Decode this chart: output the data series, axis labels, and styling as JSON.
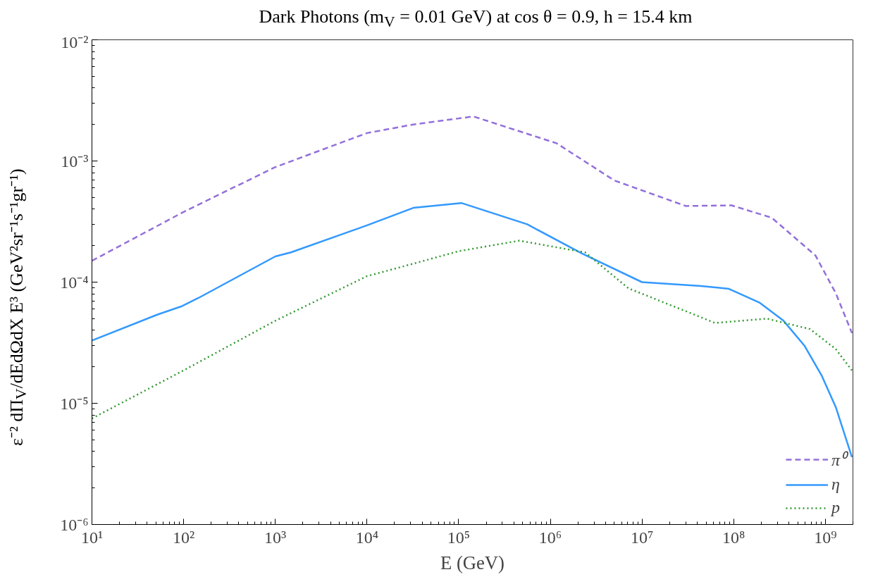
{
  "chart_data": {
    "type": "line",
    "title": "Dark Photons (m$_{V}$ = 0.01 GeV) at cos θ = 0.9, h = 15.4 km",
    "xlabel": "E (GeV)",
    "ylabel": "ε⁻² dΠ$_{V}$/dEdΩdX E³ (GeV²sr⁻¹s⁻¹gr⁻¹)",
    "log": "xy",
    "grid": false,
    "legend": "bottom right",
    "xlim": [
      10,
      2000000000.0
    ],
    "ylim": [
      1e-06,
      0.01
    ],
    "xticks": [
      {
        "value": 10,
        "label": "10¹"
      },
      {
        "value": 100,
        "label": "10²"
      },
      {
        "value": 1000,
        "label": "10³"
      },
      {
        "value": 10000,
        "label": "10⁴"
      },
      {
        "value": 100000,
        "label": "10⁵"
      },
      {
        "value": 1000000,
        "label": "10⁶"
      },
      {
        "value": 10000000,
        "label": "10⁷"
      },
      {
        "value": 100000000,
        "label": "10⁸"
      },
      {
        "value": 1000000000,
        "label": "10⁹"
      }
    ],
    "yticks": [
      {
        "value": 1e-06,
        "label": "10⁻⁶"
      },
      {
        "value": 1e-05,
        "label": "10⁻⁵"
      },
      {
        "value": 0.0001,
        "label": "10⁻⁴"
      },
      {
        "value": 0.001,
        "label": "10⁻³"
      },
      {
        "value": 0.01,
        "label": "10⁻²"
      }
    ],
    "series": [
      {
        "name": "π⁰",
        "color": "#9370db",
        "line_style": "dashed",
        "x": [
          10,
          100,
          1000,
          10000,
          32000,
          145000,
          1170000,
          5000000,
          30000000,
          95000000,
          260000000,
          780000000,
          1300000000,
          1950000000
        ],
        "values": [
          0.00015,
          0.00038,
          0.00089,
          0.0017,
          0.002,
          0.00233,
          0.0014,
          0.00069,
          0.000425,
          0.00043,
          0.00034,
          0.000166,
          8.1e-05,
          3.8e-05
        ]
      },
      {
        "name": "η",
        "color": "#3399ff",
        "line_style": "solid",
        "x": [
          10,
          52,
          94,
          145,
          1000,
          1480,
          10000,
          32000,
          107000,
          560000,
          2200000,
          10000000,
          44000000,
          89000000,
          190000000,
          350000000,
          590000000,
          910000000,
          1300000000,
          1950000000
        ],
        "values": [
          3.3e-05,
          5.4e-05,
          6.3e-05,
          7.4e-05,
          0.000163,
          0.000176,
          0.000294,
          0.00041,
          0.00045,
          0.0003,
          0.000173,
          0.0001,
          9.3e-05,
          8.8e-05,
          6.8e-05,
          4.8e-05,
          3e-05,
          1.7e-05,
          9.3e-06,
          3.6e-06
        ]
      },
      {
        "name": "p",
        "color": "#339933",
        "line_style": "dotted",
        "x": [
          10,
          100,
          1000,
          10000,
          32000,
          100000,
          460000,
          2400000,
          7100000,
          63000000,
          230000000,
          680000000,
          1300000000,
          1950000000
        ],
        "values": [
          7.5e-06,
          1.87e-05,
          4.8e-05,
          0.000112,
          0.000142,
          0.00018,
          0.00022,
          0.000176,
          8.9e-05,
          4.6e-05,
          5e-05,
          4.1e-05,
          2.8e-05,
          1.87e-05
        ]
      }
    ]
  }
}
